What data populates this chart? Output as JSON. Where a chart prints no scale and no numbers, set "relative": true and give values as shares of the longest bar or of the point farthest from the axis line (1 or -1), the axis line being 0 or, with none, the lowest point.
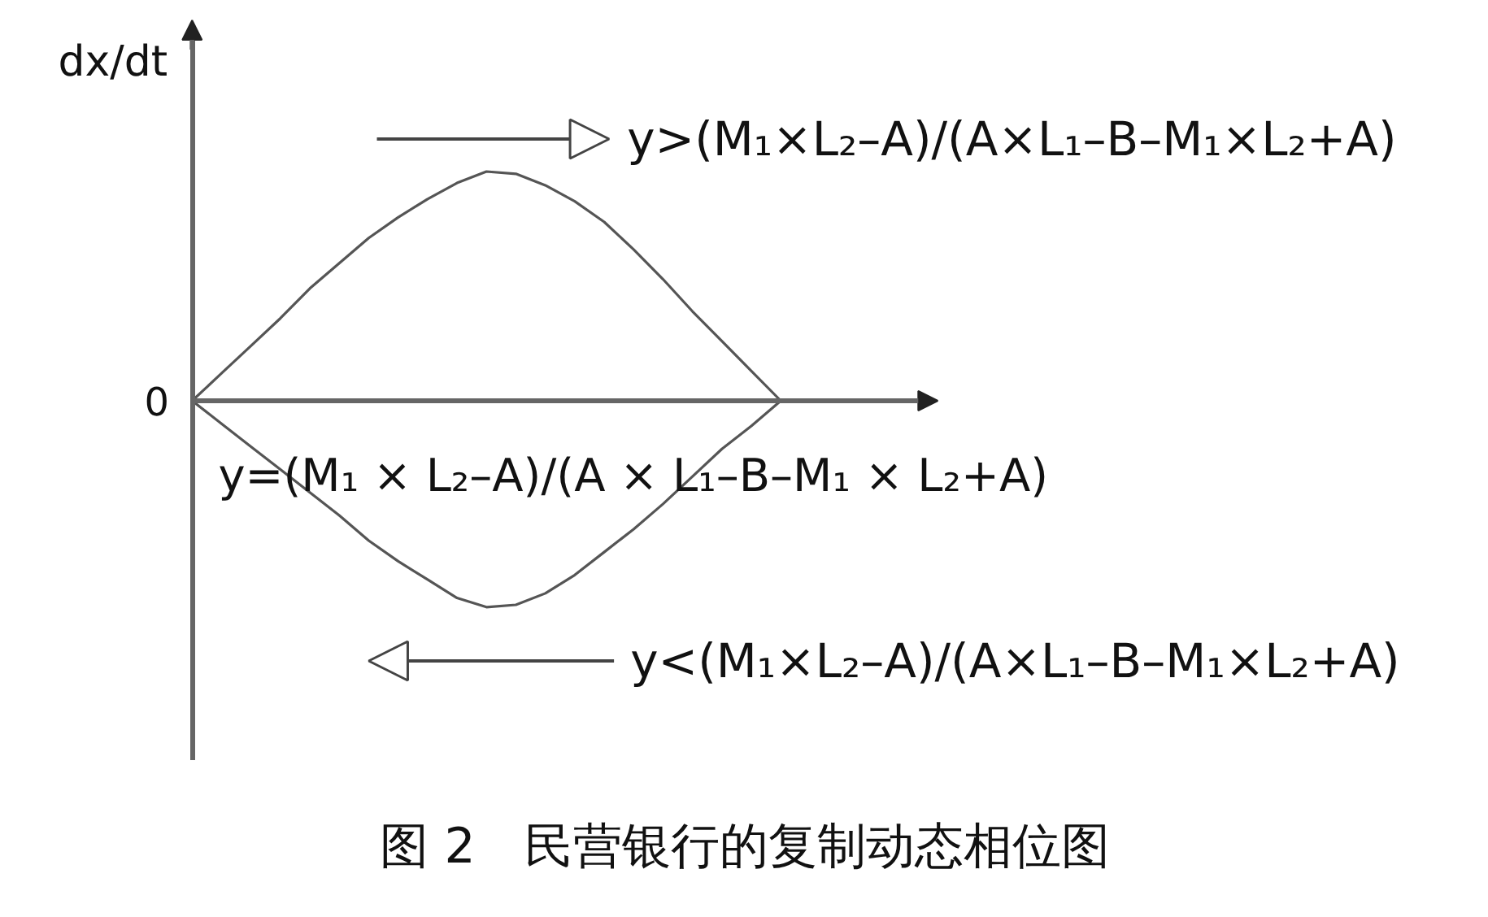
{
  "chart_data": {
    "type": "line",
    "title": "图 2　民营银行的复制动态相位图",
    "ylabel": "dx/dt",
    "relative": true,
    "categories": [
      null,
      null,
      null,
      null,
      null,
      null,
      null,
      null,
      null,
      null,
      null,
      null,
      null,
      null,
      null,
      null,
      null,
      null,
      null,
      null,
      null
    ],
    "series": [
      {
        "color": "#555555",
        "values": [
          0,
          0.12,
          0.24,
          0.36,
          0.49,
          0.6,
          0.71,
          0.8,
          0.88,
          0.95,
          1.0,
          0.99,
          0.94,
          0.87,
          0.78,
          0.66,
          0.53,
          0.39,
          0.26,
          0.13,
          0
        ]
      },
      {
        "color": "#555555",
        "values": [
          0,
          -0.1,
          -0.2,
          -0.3,
          -0.4,
          -0.5,
          -0.61,
          -0.7,
          -0.78,
          -0.86,
          -0.9,
          -0.89,
          -0.84,
          -0.76,
          -0.66,
          -0.56,
          -0.45,
          -0.33,
          -0.21,
          -0.11,
          0
        ]
      }
    ],
    "annotations": [
      "0",
      "y>(M₁×L₂–A)/(A×L₁–B–M₁×L₂+A)",
      "y=(M₁ × L₂–A)/(A × L₁–B–M₁ × L₂+A)",
      "y<(M₁×L₂–A)/(A×L₁–B–M₁×L₂+A)"
    ]
  }
}
